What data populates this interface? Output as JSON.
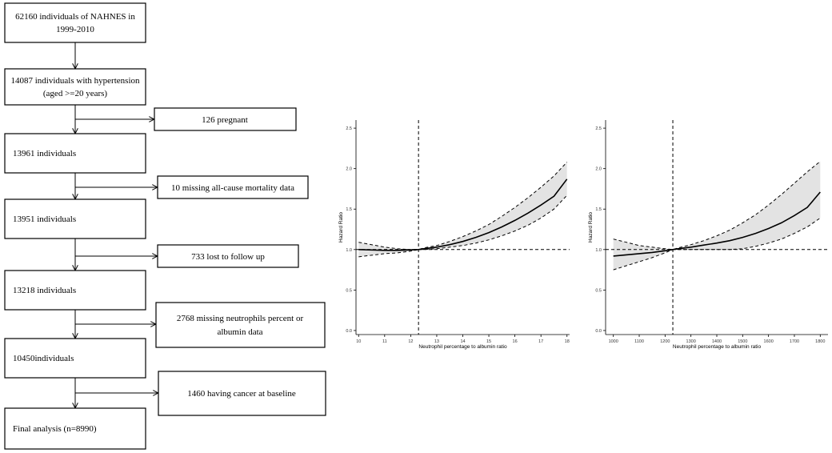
{
  "flowchart": {
    "main_boxes": [
      {
        "id": "b1",
        "lines": [
          "62160 individuals of NAHNES in",
          "1999-2010"
        ]
      },
      {
        "id": "b2",
        "lines": [
          "14087 individuals with hypertension",
          "(aged >=20 years)"
        ]
      },
      {
        "id": "b3",
        "lines": [
          "13961 individuals"
        ]
      },
      {
        "id": "b4",
        "lines": [
          "13951 individuals"
        ]
      },
      {
        "id": "b5",
        "lines": [
          "13218 individuals"
        ]
      },
      {
        "id": "b6",
        "lines": [
          "10450individuals"
        ]
      },
      {
        "id": "b7",
        "lines": [
          "Final analysis (n=8990)"
        ]
      }
    ],
    "exclusion_boxes": [
      {
        "id": "e1",
        "lines": [
          "126 pregnant"
        ]
      },
      {
        "id": "e2",
        "lines": [
          "10 missing all-cause mortality data"
        ]
      },
      {
        "id": "e3",
        "lines": [
          "733 lost to follow up"
        ]
      },
      {
        "id": "e4",
        "lines": [
          "2768 missing neutrophils percent or",
          "albumin data"
        ]
      },
      {
        "id": "e5",
        "lines": [
          "1460 having cancer at baseline"
        ]
      }
    ]
  },
  "chart_data": [
    {
      "type": "line",
      "xlabel": "Neutrophil percentage to albumin ratio",
      "ylabel": "Hazard Ratio",
      "xlim": [
        9.9,
        18.1
      ],
      "ylim": [
        -0.05,
        2.6
      ],
      "xticks": [
        "10",
        "11",
        "12",
        "13",
        "14",
        "15",
        "16",
        "17",
        "18"
      ],
      "yticks": [
        "0.0",
        "0.5",
        "1.0",
        "1.5",
        "2.0",
        "2.5"
      ],
      "reference_x": 12.3,
      "reference_y": 1.0,
      "x": [
        10,
        10.5,
        11,
        11.5,
        12,
        12.3,
        12.5,
        13,
        13.5,
        14,
        14.5,
        15,
        15.5,
        16,
        16.5,
        17,
        17.5,
        18
      ],
      "y": [
        1.0,
        0.995,
        0.99,
        0.99,
        0.995,
        1.0,
        1.01,
        1.03,
        1.06,
        1.1,
        1.15,
        1.21,
        1.28,
        1.36,
        1.45,
        1.55,
        1.66,
        1.87
      ],
      "lower": [
        0.91,
        0.93,
        0.95,
        0.96,
        0.98,
        1.0,
        1.0,
        1.01,
        1.03,
        1.05,
        1.08,
        1.12,
        1.17,
        1.23,
        1.3,
        1.39,
        1.5,
        1.67
      ],
      "upper": [
        1.09,
        1.06,
        1.03,
        1.01,
        1.0,
        1.0,
        1.02,
        1.05,
        1.1,
        1.16,
        1.23,
        1.31,
        1.41,
        1.52,
        1.64,
        1.77,
        1.91,
        2.08
      ],
      "grid": false
    },
    {
      "type": "line",
      "xlabel": "Neutrophil percentage to albumin ratio",
      "ylabel": "Hazard Ratio",
      "xlim": [
        970,
        1830
      ],
      "ylim": [
        -0.05,
        2.6
      ],
      "xticks": [
        "1000",
        "1100",
        "1200",
        "1300",
        "1400",
        "1500",
        "1600",
        "1700",
        "1800"
      ],
      "yticks": [
        "0.0",
        "0.5",
        "1.0",
        "1.5",
        "2.0",
        "2.5"
      ],
      "reference_x": 1230,
      "reference_y": 1.0,
      "x": [
        1000,
        1050,
        1100,
        1150,
        1200,
        1230,
        1250,
        1300,
        1350,
        1400,
        1450,
        1500,
        1550,
        1600,
        1650,
        1700,
        1750,
        1800
      ],
      "y": [
        0.92,
        0.935,
        0.95,
        0.965,
        0.985,
        1.0,
        1.01,
        1.03,
        1.055,
        1.08,
        1.11,
        1.15,
        1.2,
        1.26,
        1.33,
        1.42,
        1.52,
        1.71
      ],
      "lower": [
        0.75,
        0.8,
        0.85,
        0.9,
        0.96,
        1.0,
        1.0,
        1.0,
        1.0,
        1.0,
        1.0,
        1.01,
        1.04,
        1.08,
        1.13,
        1.2,
        1.28,
        1.39
      ],
      "upper": [
        1.13,
        1.09,
        1.05,
        1.03,
        1.01,
        1.0,
        1.02,
        1.06,
        1.11,
        1.17,
        1.24,
        1.33,
        1.43,
        1.55,
        1.68,
        1.82,
        1.96,
        2.09
      ],
      "grid": false
    }
  ]
}
